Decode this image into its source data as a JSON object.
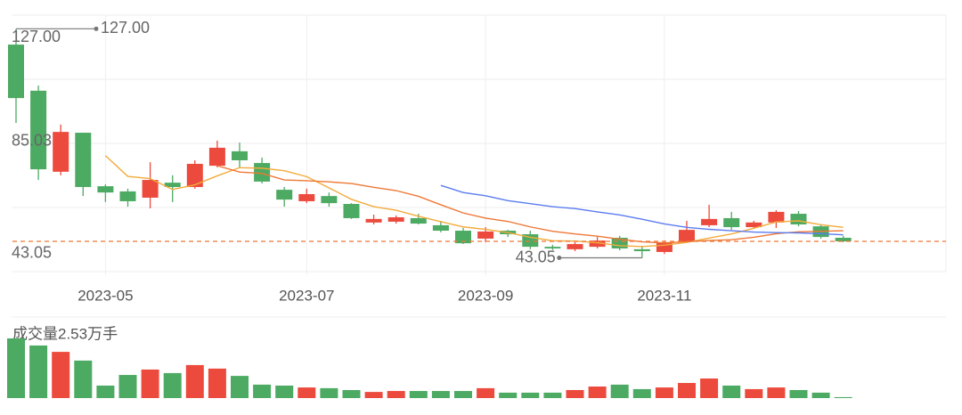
{
  "chart_data": {
    "type": "candlestick",
    "categories": [
      null,
      null,
      null,
      null,
      "2023-05",
      null,
      null,
      null,
      null,
      null,
      null,
      null,
      null,
      "2023-07",
      null,
      null,
      null,
      null,
      null,
      null,
      null,
      "2023-09",
      null,
      null,
      null,
      null,
      null,
      null,
      null,
      "2023-11",
      null,
      null,
      null,
      null,
      null,
      null,
      null,
      null
    ],
    "open": [
      121.2,
      104.3,
      74.6,
      88.9,
      69.3,
      67.4,
      65.1,
      70.6,
      69.0,
      76.8,
      82.1,
      77.8,
      68.0,
      63.8,
      65.7,
      62.8,
      56.0,
      56.3,
      57.6,
      55.0,
      53.0,
      50.1,
      53.0,
      51.7,
      47.1,
      46.2,
      47.1,
      50.4,
      46.2,
      45.2,
      49.1,
      55.0,
      57.6,
      54.3,
      56.0,
      59.2,
      54.6,
      50.4
    ],
    "high": [
      127.0,
      106.2,
      91.9,
      88.9,
      70.0,
      68.4,
      78.1,
      73.3,
      78.8,
      86.0,
      85.3,
      79.8,
      69.0,
      68.4,
      67.0,
      63.1,
      58.9,
      58.6,
      59.2,
      56.6,
      54.0,
      54.3,
      53.3,
      53.0,
      47.8,
      48.8,
      50.7,
      51.1,
      47.5,
      49.4,
      56.6,
      62.5,
      59.9,
      56.6,
      60.5,
      60.2,
      55.3,
      51.1
    ],
    "low": [
      92.5,
      71.6,
      73.3,
      65.7,
      63.5,
      61.8,
      61.2,
      63.5,
      68.4,
      76.2,
      76.2,
      70.3,
      61.8,
      63.1,
      61.8,
      57.3,
      55.3,
      55.6,
      55.3,
      52.4,
      48.1,
      48.8,
      50.7,
      46.2,
      45.9,
      45.5,
      46.5,
      45.8,
      43.05,
      44.5,
      48.8,
      54.3,
      53.3,
      53.7,
      54.0,
      54.6,
      50.1,
      48.8
    ],
    "close": [
      101.6,
      75.5,
      89.2,
      69.0,
      67.0,
      63.8,
      71.6,
      69.0,
      77.5,
      83.4,
      78.8,
      71.0,
      64.4,
      66.4,
      63.1,
      57.6,
      57.3,
      57.9,
      55.6,
      53.0,
      48.4,
      52.7,
      51.7,
      47.1,
      46.5,
      48.1,
      49.4,
      46.5,
      45.5,
      48.8,
      53.3,
      57.3,
      54.3,
      56.0,
      59.9,
      55.3,
      50.7,
      49.1
    ],
    "up_color": "#ec4a3d",
    "down_color": "#4caa62",
    "moving_averages": [
      {
        "color": "#f2ab3c",
        "values": [
          null,
          null,
          null,
          null,
          80.5,
          72.9,
          72.1,
          68.1,
          69.8,
          73.1,
          76.1,
          75.9,
          75.0,
          72.8,
          68.7,
          64.5,
          61.8,
          60.5,
          58.3,
          56.3,
          54.4,
          53.5,
          52.3,
          50.6,
          49.3,
          49.2,
          48.6,
          47.5,
          47.2,
          47.7,
          48.7,
          50.3,
          51.8,
          53.9,
          56.2,
          56.6,
          55.2,
          54.2
        ]
      },
      {
        "color": "#ee7836",
        "values": [
          null,
          null,
          null,
          null,
          null,
          null,
          null,
          null,
          null,
          76.8,
          74.5,
          74.0,
          71.6,
          71.3,
          70.9,
          70.3,
          68.9,
          67.7,
          65.6,
          62.5,
          59.5,
          57.6,
          56.4,
          54.4,
          52.8,
          51.8,
          51.0,
          49.9,
          48.9,
          48.5,
          49.0,
          49.4,
          49.7,
          50.6,
          51.9,
          52.6,
          52.8,
          53.0
        ]
      },
      {
        "color": "#5b7cf0",
        "values": [
          null,
          null,
          null,
          null,
          null,
          null,
          null,
          null,
          null,
          null,
          null,
          null,
          null,
          null,
          null,
          null,
          null,
          null,
          null,
          69.6,
          67.0,
          65.8,
          64.0,
          62.9,
          61.8,
          61.1,
          59.9,
          58.8,
          57.2,
          55.5,
          54.2,
          53.5,
          53.0,
          52.5,
          52.3,
          52.2,
          51.9,
          51.5
        ]
      }
    ],
    "ylim": [
      38,
      132
    ],
    "yticks": [
      {
        "value": 127,
        "label": "127.00"
      },
      {
        "value": 85.03,
        "label": "85.03"
      },
      {
        "value": 43.05,
        "label": "43.05"
      }
    ],
    "high_label": "127.00",
    "low_label": "43.05",
    "last_price_color": "#ee7836",
    "volume": {
      "label": "成交量2.53万手",
      "ylim": [
        0,
        2.53
      ],
      "values": [
        2.53,
        2.23,
        1.96,
        1.59,
        0.53,
        0.98,
        1.21,
        1.06,
        1.4,
        1.25,
        0.94,
        0.57,
        0.53,
        0.45,
        0.42,
        0.34,
        0.26,
        0.3,
        0.3,
        0.3,
        0.3,
        0.42,
        0.23,
        0.23,
        0.23,
        0.34,
        0.49,
        0.57,
        0.38,
        0.45,
        0.64,
        0.83,
        0.53,
        0.38,
        0.45,
        0.34,
        0.23,
        0.04
      ]
    }
  }
}
